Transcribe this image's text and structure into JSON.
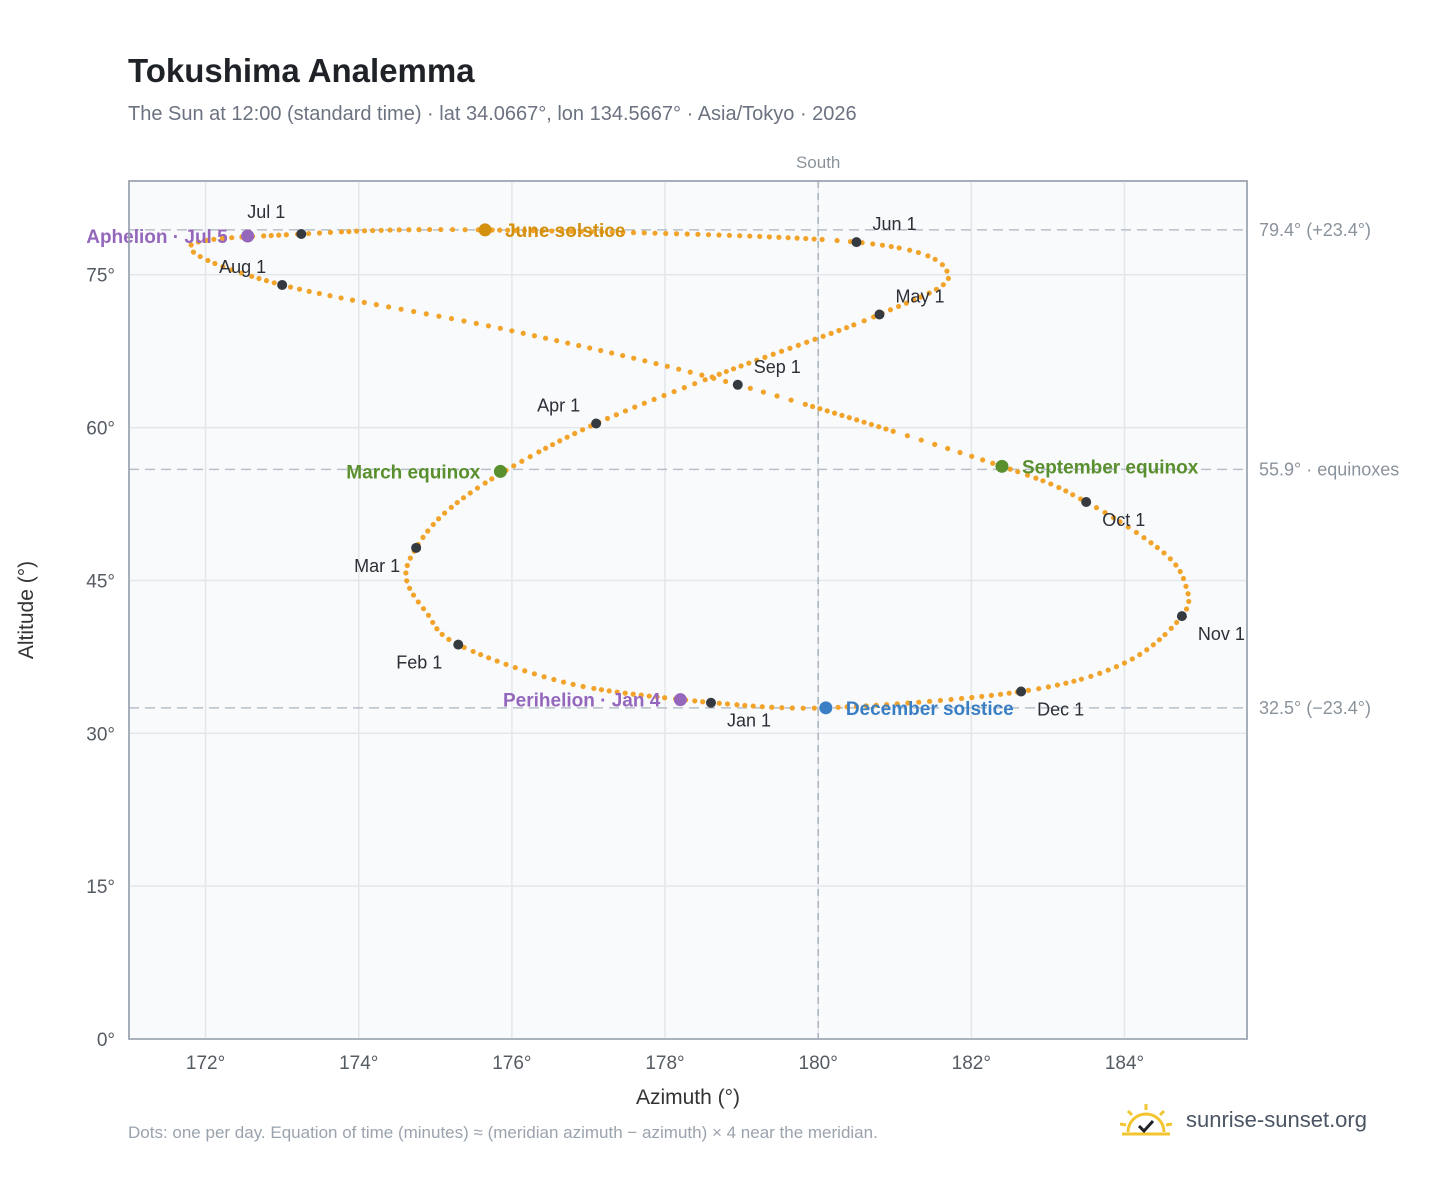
{
  "header": {
    "title": "Tokushima Analemma",
    "subtitle": "The Sun at 12:00 (standard time) · lat 34.0667°, lon 134.5667° · Asia/Tokyo · 2026"
  },
  "footer": {
    "note": "Dots: one per day. Equation of time (minutes) ≈ (meridian azimuth − azimuth) × 4 near the meridian.",
    "brand": "sunrise-sunset.org",
    "brand_icon": "sun-check-icon"
  },
  "chart_data": {
    "type": "scatter",
    "title": "Tokushima Analemma",
    "subtitle": "The Sun at 12:00 (standard time) · lat 34.0667°, lon 134.5667° · Asia/Tokyo · 2026",
    "xlabel": "Azimuth (°)",
    "ylabel": "Altitude (°)",
    "xlim": [
      171.0,
      185.6
    ],
    "ylim": [
      0,
      84.2
    ],
    "x_ticks": [
      172,
      174,
      176,
      178,
      180,
      182,
      184
    ],
    "x_tick_labels": [
      "172°",
      "174°",
      "176°",
      "178°",
      "180°",
      "182°",
      "184°"
    ],
    "y_ticks": [
      0,
      15,
      30,
      45,
      60,
      75
    ],
    "y_tick_labels": [
      "0°",
      "15°",
      "30°",
      "45°",
      "60°",
      "75°"
    ],
    "grid": true,
    "meridian": {
      "x": 180,
      "label": "South"
    },
    "reference_lines": [
      {
        "y": 79.4,
        "label": "79.4° (+23.4°)"
      },
      {
        "y": 55.9,
        "label": "55.9° · equinoxes"
      },
      {
        "y": 32.5,
        "label": "32.5° (−23.4°)"
      }
    ],
    "curve_color": "#f2a32a",
    "curve_points": [
      {
        "date": "Jan 1",
        "az": 178.6,
        "alt": 33.0
      },
      {
        "date": "Jan 15",
        "az": 176.8,
        "alt": 34.8
      },
      {
        "date": "Feb 1",
        "az": 175.3,
        "alt": 38.7
      },
      {
        "date": "Feb 10",
        "az": 174.88,
        "alt": 41.9
      },
      {
        "date": "Feb 20",
        "az": 174.62,
        "alt": 45.2
      },
      {
        "date": "Mar 1",
        "az": 174.75,
        "alt": 48.2
      },
      {
        "date": "Mar 10",
        "az": 175.15,
        "alt": 51.8
      },
      {
        "date": "Mar 20",
        "az": 175.9,
        "alt": 55.7
      },
      {
        "date": "Apr 1",
        "az": 177.1,
        "alt": 60.4
      },
      {
        "date": "Apr 15",
        "az": 178.8,
        "alt": 65.5
      },
      {
        "date": "May 1",
        "az": 180.8,
        "alt": 71.1
      },
      {
        "date": "May 15",
        "az": 181.7,
        "alt": 75.0
      },
      {
        "date": "Jun 1",
        "az": 180.5,
        "alt": 78.2
      },
      {
        "date": "Jun 21",
        "az": 175.65,
        "alt": 79.4
      },
      {
        "date": "Jul 1",
        "az": 173.25,
        "alt": 79.0
      },
      {
        "date": "Jul 15",
        "az": 171.8,
        "alt": 77.8
      },
      {
        "date": "Aug 1",
        "az": 173.0,
        "alt": 74.0
      },
      {
        "date": "Aug 15",
        "az": 176.0,
        "alt": 69.5
      },
      {
        "date": "Sep 1",
        "az": 178.95,
        "alt": 64.2
      },
      {
        "date": "Sep 22",
        "az": 182.4,
        "alt": 56.2
      },
      {
        "date": "Oct 1",
        "az": 183.5,
        "alt": 52.7
      },
      {
        "date": "Oct 15",
        "az": 184.5,
        "alt": 47.8
      },
      {
        "date": "Oct 25",
        "az": 184.8,
        "alt": 44.5
      },
      {
        "date": "Nov 1",
        "az": 184.75,
        "alt": 41.5
      },
      {
        "date": "Nov 15",
        "az": 184.0,
        "alt": 36.9
      },
      {
        "date": "Dec 1",
        "az": 182.65,
        "alt": 34.1
      },
      {
        "date": "Dec 21",
        "az": 180.1,
        "alt": 32.5
      },
      {
        "date": "Dec 31",
        "az": 178.6,
        "alt": 33.0
      }
    ],
    "month_markers": [
      {
        "label": "Jan 1",
        "az": 178.6,
        "alt": 33.0
      },
      {
        "label": "Feb 1",
        "az": 175.3,
        "alt": 38.7
      },
      {
        "label": "Mar 1",
        "az": 174.75,
        "alt": 48.2
      },
      {
        "label": "Apr 1",
        "az": 177.1,
        "alt": 60.4
      },
      {
        "label": "May 1",
        "az": 180.8,
        "alt": 71.1
      },
      {
        "label": "Jun 1",
        "az": 180.5,
        "alt": 78.2
      },
      {
        "label": "Jul 1",
        "az": 173.25,
        "alt": 79.0
      },
      {
        "label": "Aug 1",
        "az": 173.0,
        "alt": 74.0
      },
      {
        "label": "Sep 1",
        "az": 178.95,
        "alt": 64.2
      },
      {
        "label": "Oct 1",
        "az": 183.5,
        "alt": 52.7
      },
      {
        "label": "Nov 1",
        "az": 184.75,
        "alt": 41.5
      },
      {
        "label": "Dec 1",
        "az": 182.65,
        "alt": 34.1
      }
    ],
    "events": [
      {
        "label": "June solstice",
        "az": 175.65,
        "alt": 79.4,
        "color": "#d4900f"
      },
      {
        "label": "March equinox",
        "az": 175.85,
        "alt": 55.7,
        "color": "#5a8f2e"
      },
      {
        "label": "September equinox",
        "az": 182.4,
        "alt": 56.2,
        "color": "#5a8f2e"
      },
      {
        "label": "December solstice",
        "az": 180.1,
        "alt": 32.5,
        "color": "#3a7fc4"
      },
      {
        "label": "Aphelion · Jul 5",
        "az": 172.55,
        "alt": 78.8,
        "color": "#9467bd"
      },
      {
        "label": "Perihelion · Jan 4",
        "az": 178.2,
        "alt": 33.3,
        "color": "#9467bd"
      }
    ]
  }
}
